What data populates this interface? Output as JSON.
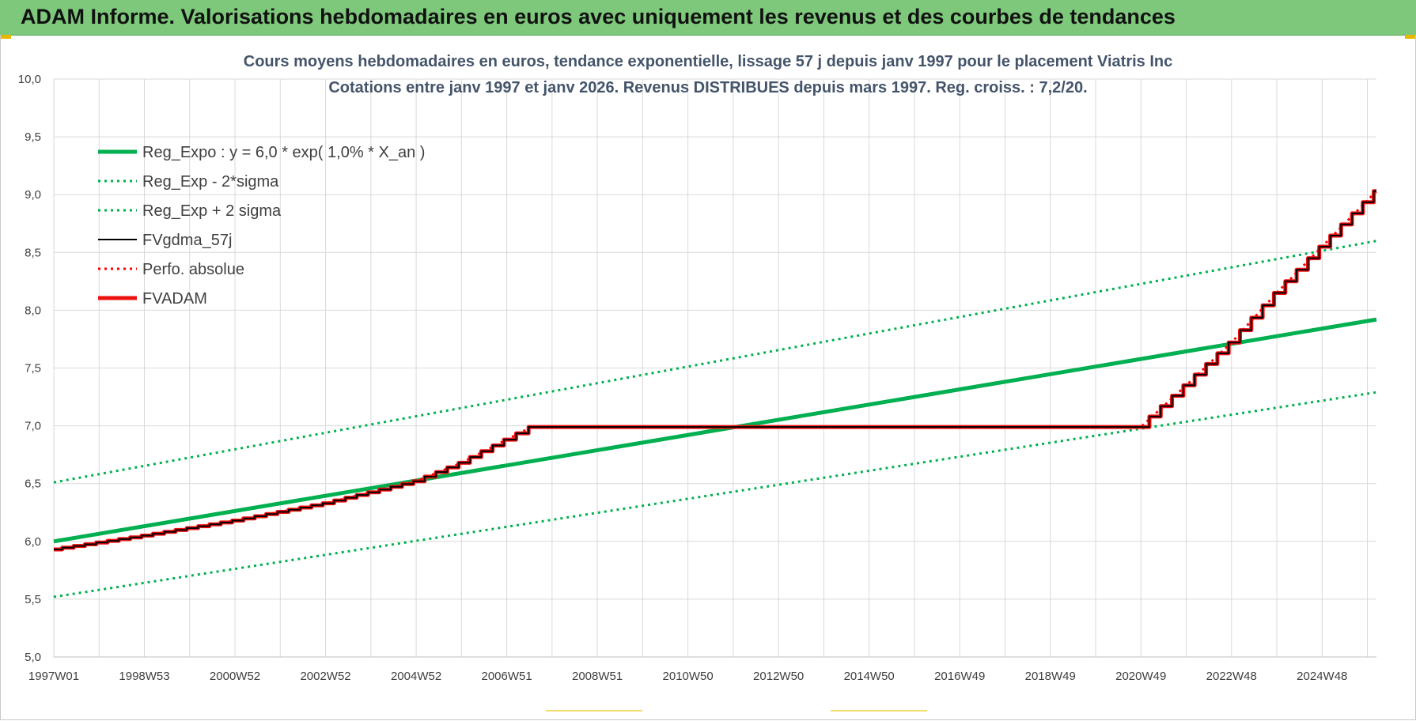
{
  "banner": {
    "title": "ADAM Informe. Valorisations hebdomadaires en euros avec uniquement les revenus et des courbes de tendances"
  },
  "colors": {
    "banner_bg": "#7dc87a",
    "reg_expo": "#00b050",
    "band": "#00b050",
    "fvgdma": "#000000",
    "perfo": "#ff0000",
    "fvadam": "#ee1111",
    "grid": "#d9d9d9",
    "title_text": "#44546a"
  },
  "chart_data": {
    "type": "line",
    "title": "Cours moyens hebdomadaires en euros, tendance exponentielle, lissage 57 j depuis janv 1997 pour le placement Viatris Inc",
    "subtitle": "Cotations entre janv 1997 et janv 2026. Revenus DISTRIBUES depuis mars 1997. Reg. croiss. : 7,2/20.",
    "xlabel": "",
    "ylabel": "",
    "ylim": [
      5.0,
      10.0
    ],
    "yticks": [
      "10,0",
      "9,5",
      "9,0",
      "8,5",
      "8,0",
      "7,5",
      "7,0",
      "6,5",
      "6,0",
      "5,5",
      "5,0"
    ],
    "xlim": [
      1997.0,
      2026.2
    ],
    "xticks": [
      {
        "label": "1997W01",
        "x": 1997.0
      },
      {
        "label": "1998W53",
        "x": 1999.0
      },
      {
        "label": "2000W52",
        "x": 2001.0
      },
      {
        "label": "2002W52",
        "x": 2003.0
      },
      {
        "label": "2004W52",
        "x": 2005.0
      },
      {
        "label": "2006W51",
        "x": 2007.0
      },
      {
        "label": "2008W51",
        "x": 2009.0
      },
      {
        "label": "2010W50",
        "x": 2011.0
      },
      {
        "label": "2012W50",
        "x": 2013.0
      },
      {
        "label": "2014W50",
        "x": 2015.0
      },
      {
        "label": "2016W49",
        "x": 2017.0
      },
      {
        "label": "2018W49",
        "x": 2019.0
      },
      {
        "label": "2020W49",
        "x": 2021.0
      },
      {
        "label": "2022W48",
        "x": 2023.0
      },
      {
        "label": "2024W48",
        "x": 2025.0
      }
    ],
    "legend_position": "top-left",
    "grid": true,
    "series": [
      {
        "name": "Reg_Expo : y = 6,0 * exp( 1,0% *  X_an )",
        "style": "solid-thick",
        "color": "#00b050",
        "x": [
          1997.0,
          2026.2
        ],
        "y": [
          6.0,
          7.92
        ]
      },
      {
        "name": "Reg_Exp - 2*sigma",
        "style": "dotted",
        "color": "#00b050",
        "x": [
          1997.0,
          2026.2
        ],
        "y": [
          5.52,
          7.29
        ]
      },
      {
        "name": "Reg_Exp + 2 sigma",
        "style": "dotted",
        "color": "#00b050",
        "x": [
          1997.0,
          2026.2
        ],
        "y": [
          6.51,
          8.6
        ]
      },
      {
        "name": "FVgdma_57j",
        "style": "solid-thin",
        "color": "#000000",
        "x": [
          1997.0,
          1999.0,
          2001.0,
          2003.0,
          2005.0,
          2006.0,
          2007.0,
          2007.55,
          2013.0,
          2021.0,
          2022.0,
          2023.0,
          2024.0,
          2025.0,
          2026.2
        ],
        "y": [
          5.93,
          6.05,
          6.18,
          6.33,
          6.52,
          6.68,
          6.88,
          6.99,
          6.99,
          6.99,
          7.35,
          7.72,
          8.15,
          8.55,
          9.03
        ]
      },
      {
        "name": "Perfo. absolue",
        "style": "dotted",
        "color": "#ff0000",
        "x": [
          1997.0,
          1999.0,
          2001.0,
          2003.0,
          2005.0,
          2006.0,
          2007.0,
          2007.55,
          2013.0,
          2021.0,
          2022.0,
          2023.0,
          2024.0,
          2025.0,
          2026.2
        ],
        "y": [
          5.93,
          6.05,
          6.18,
          6.33,
          6.52,
          6.68,
          6.88,
          6.99,
          6.99,
          6.99,
          7.35,
          7.72,
          8.15,
          8.55,
          9.03
        ]
      },
      {
        "name": "FVADAM",
        "style": "solid-thick",
        "color": "#ee1111",
        "x": [
          1997.0,
          1999.0,
          2001.0,
          2003.0,
          2005.0,
          2006.0,
          2007.0,
          2007.55,
          2013.0,
          2021.0,
          2022.0,
          2023.0,
          2024.0,
          2025.0,
          2026.2
        ],
        "y": [
          5.93,
          6.05,
          6.18,
          6.33,
          6.52,
          6.68,
          6.88,
          6.99,
          6.99,
          6.99,
          7.35,
          7.72,
          8.15,
          8.55,
          9.03
        ]
      }
    ]
  }
}
